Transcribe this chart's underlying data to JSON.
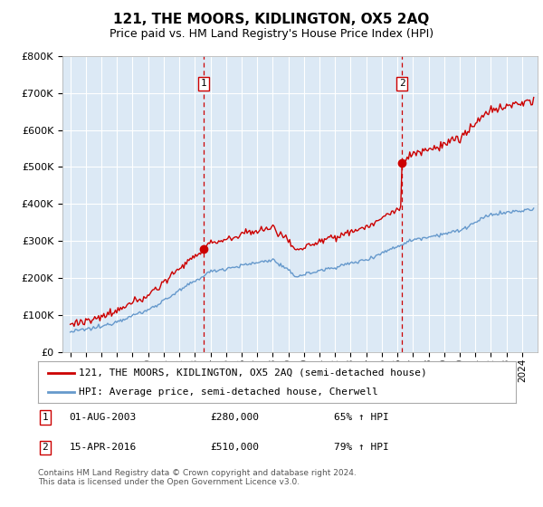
{
  "title": "121, THE MOORS, KIDLINGTON, OX5 2AQ",
  "subtitle": "Price paid vs. HM Land Registry's House Price Index (HPI)",
  "red_line_label": "121, THE MOORS, KIDLINGTON, OX5 2AQ (semi-detached house)",
  "blue_line_label": "HPI: Average price, semi-detached house, Cherwell",
  "sale1_date": "01-AUG-2003",
  "sale1_price": 280000,
  "sale1_pct": "65% ↑ HPI",
  "sale2_date": "15-APR-2016",
  "sale2_price": 510000,
  "sale2_pct": "79% ↑ HPI",
  "footnote": "Contains HM Land Registry data © Crown copyright and database right 2024.\nThis data is licensed under the Open Government Licence v3.0.",
  "ylim": [
    0,
    800000
  ],
  "yticks": [
    0,
    100000,
    200000,
    300000,
    400000,
    500000,
    600000,
    700000,
    800000
  ],
  "ylabel_fmt": [
    "£0",
    "£100K",
    "£200K",
    "£300K",
    "£400K",
    "£500K",
    "£600K",
    "£700K",
    "£800K"
  ],
  "background_color": "#dce9f5",
  "red_color": "#cc0000",
  "blue_color": "#6699cc",
  "grid_color": "#ffffff",
  "vline_color": "#cc0000",
  "sale1_year": 2003.583,
  "sale2_year": 2016.292,
  "sale1_price_val": 280000,
  "sale2_price_val": 510000
}
